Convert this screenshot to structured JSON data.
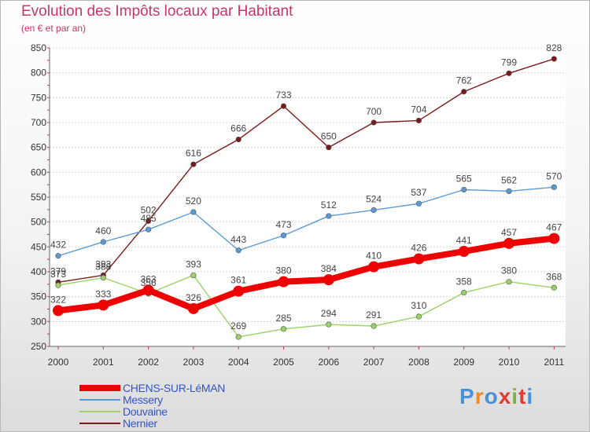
{
  "title": "Evolution des Impôts locaux par Habitant",
  "subtitle": "(en € et par an)",
  "logo": {
    "text": "Proxiti",
    "colors": [
      "#4a90d9",
      "#f08a24",
      "#4a90d9",
      "#e03c31",
      "#7cb342",
      "#e03c31",
      "#4a90d9"
    ]
  },
  "chart_data": {
    "type": "line",
    "x": [
      "2000",
      "2001",
      "2002",
      "2003",
      "2004",
      "2005",
      "2006",
      "2007",
      "2008",
      "2009",
      "2010",
      "2011"
    ],
    "yticks": [
      250,
      300,
      350,
      400,
      450,
      500,
      550,
      600,
      650,
      700,
      750,
      800,
      850
    ],
    "ylim": [
      250,
      850
    ],
    "grid": true,
    "legend_position": "bottom-left",
    "series": [
      {
        "name": "Nernier",
        "color": "#7b1a1a",
        "values": [
          379,
          393,
          502,
          616,
          666,
          733,
          650,
          700,
          704,
          762,
          799,
          828
        ]
      },
      {
        "name": "Messery",
        "color": "#5b9bd5",
        "values": [
          432,
          460,
          485,
          520,
          443,
          473,
          512,
          524,
          537,
          565,
          562,
          570
        ]
      },
      {
        "name": "Douvaine",
        "color": "#99d266",
        "values": [
          373,
          388,
          356,
          393,
          269,
          285,
          294,
          291,
          310,
          358,
          380,
          368
        ]
      },
      {
        "name": "CHENS-SUR-LéMAN",
        "color": "#ee0000",
        "values": [
          322,
          333,
          363,
          326,
          361,
          380,
          384,
          410,
          426,
          441,
          457,
          467
        ]
      }
    ],
    "legend_order": [
      "CHENS-SUR-LéMAN",
      "Messery",
      "Douvaine",
      "Nernier"
    ]
  }
}
